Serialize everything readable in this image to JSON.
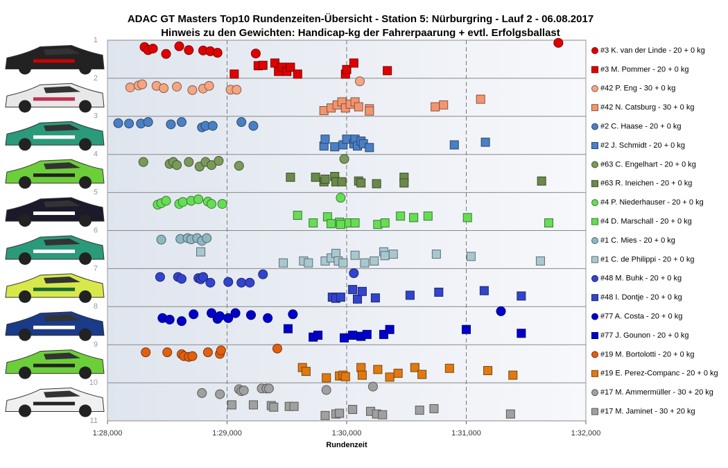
{
  "chart_data": {
    "type": "scatter",
    "title": "ADAC GT Masters Top10 Rundenzeiten-Übersicht - Station 5: Nürburgring - Lauf 2 - 06.08.2017",
    "subtitle": "Hinweis zu den Gewichten: Handicap-kg der Fahrerpaarung + evtl. Erfolgsballast",
    "x_label": "Rundenzeit",
    "xlim": [
      88,
      92
    ],
    "xticks": [
      {
        "value": 88,
        "label": "1:28,000"
      },
      {
        "value": 89,
        "label": "1:29,000"
      },
      {
        "value": 90,
        "label": "1:30,000"
      },
      {
        "value": 91,
        "label": "1:31,000"
      },
      {
        "value": 92,
        "label": "1:32,000"
      }
    ],
    "ylim": [
      1,
      11
    ],
    "yticks": [
      1,
      2,
      3,
      4,
      5,
      6,
      7,
      8,
      9,
      10,
      11
    ],
    "y_reversed": true,
    "grid": true,
    "legend": "right",
    "series": [
      {
        "name": "#3 K. van der Linde - 20 + 0 kg",
        "marker": "circle",
        "color": "#e00000",
        "x": [
          88.31,
          88.34,
          88.38,
          88.49,
          88.6,
          88.68,
          88.8,
          88.86,
          88.92,
          89.24,
          91.77
        ],
        "values": [
          1.18,
          1.26,
          1.22,
          1.36,
          1.16,
          1.26,
          1.27,
          1.29,
          1.33,
          1.35,
          1.07
        ]
      },
      {
        "name": "#3 M. Pommer - 20 + 0 kg",
        "marker": "square",
        "color": "#e00000",
        "x": [
          89.06,
          89.26,
          89.3,
          89.4,
          89.43,
          89.46,
          89.5,
          89.53,
          89.59,
          89.99,
          90.0,
          90.06,
          90.34
        ],
        "values": [
          1.89,
          1.67,
          1.66,
          1.6,
          1.82,
          1.71,
          1.82,
          1.71,
          1.89,
          1.89,
          1.77,
          1.6,
          1.8
        ]
      },
      {
        "name": "#42 P. Eng - 30 + 0 kg",
        "marker": "circle",
        "color": "#f4a582",
        "x": [
          88.19,
          88.26,
          88.29,
          88.41,
          88.47,
          88.58,
          88.71,
          88.8,
          88.85,
          89.03,
          89.08,
          90.11
        ],
        "values": [
          2.24,
          2.19,
          2.16,
          2.2,
          2.26,
          2.22,
          2.31,
          2.27,
          2.2,
          2.3,
          2.3,
          2.08
        ]
      },
      {
        "name": "#42 N. Catsburg - 30 + 0 kg",
        "marker": "square",
        "color": "#f49570",
        "x": [
          89.81,
          89.87,
          89.92,
          89.96,
          89.99,
          90.03,
          90.07,
          90.1,
          90.19,
          90.19,
          90.74,
          90.81,
          91.12
        ],
        "values": [
          2.85,
          2.78,
          2.7,
          2.62,
          2.78,
          2.68,
          2.62,
          2.75,
          2.8,
          2.86,
          2.75,
          2.7,
          2.55
        ]
      },
      {
        "name": "#2 C. Haase - 20 + 0 kg",
        "marker": "circle",
        "color": "#4a7fc4",
        "x": [
          88.09,
          88.18,
          88.28,
          88.34,
          88.53,
          88.62,
          88.79,
          88.82,
          88.88,
          89.12,
          89.22
        ],
        "values": [
          3.18,
          3.19,
          3.19,
          3.15,
          3.21,
          3.15,
          3.29,
          3.25,
          3.25,
          3.15,
          3.25
        ]
      },
      {
        "name": "#2 J. Schmidt - 20 + 0 kg",
        "marker": "square",
        "color": "#4a7fc4",
        "x": [
          89.81,
          89.82,
          89.9,
          89.97,
          90.0,
          90.06,
          90.07,
          90.09,
          90.12,
          90.14,
          90.19,
          90.9,
          91.16
        ],
        "values": [
          3.78,
          3.6,
          3.8,
          3.75,
          3.6,
          3.72,
          3.6,
          3.78,
          3.65,
          3.72,
          3.82,
          3.75,
          3.68
        ]
      },
      {
        "name": "#63 C. Engelhart - 20 + 0 kg",
        "marker": "circle",
        "color": "#7a9a5a",
        "x": [
          88.3,
          88.52,
          88.55,
          88.58,
          88.68,
          88.77,
          88.82,
          88.87,
          88.93,
          89.1,
          89.98
        ],
        "values": [
          4.2,
          4.25,
          4.2,
          4.28,
          4.2,
          4.32,
          4.2,
          4.28,
          4.17,
          4.3,
          4.12
        ]
      },
      {
        "name": "#63 R. Ineichen - 20 + 0 kg",
        "marker": "square",
        "color": "#6a8a4a",
        "x": [
          89.53,
          89.74,
          89.81,
          89.82,
          89.9,
          89.91,
          89.96,
          90.1,
          90.12,
          90.25,
          90.48,
          90.48,
          91.63
        ],
        "values": [
          4.6,
          4.6,
          4.72,
          4.65,
          4.58,
          4.72,
          4.72,
          4.7,
          4.75,
          4.77,
          4.6,
          4.75,
          4.7
        ]
      },
      {
        "name": "#4 P. Niederhauser - 20 + 0 kg",
        "marker": "circle",
        "color": "#66dd55",
        "x": [
          88.42,
          88.45,
          88.49,
          88.6,
          88.63,
          88.7,
          88.76,
          88.84,
          88.87,
          88.96,
          89.95
        ],
        "values": [
          5.32,
          5.28,
          5.22,
          5.3,
          5.25,
          5.22,
          5.18,
          5.24,
          5.3,
          5.3,
          5.14
        ]
      },
      {
        "name": "#4 D. Marschall - 20 + 0 kg",
        "marker": "square",
        "color": "#66dd55",
        "x": [
          89.59,
          89.72,
          89.84,
          89.87,
          89.94,
          89.95,
          90.02,
          90.07,
          90.26,
          90.32,
          90.45,
          90.56,
          90.68,
          91.01,
          91.69
        ],
        "values": [
          5.6,
          5.8,
          5.64,
          5.82,
          5.78,
          5.84,
          5.8,
          5.8,
          5.84,
          5.8,
          5.62,
          5.66,
          5.62,
          5.66,
          5.8
        ]
      },
      {
        "name": "#1 C. Mies - 20 + 0 kg",
        "marker": "circle",
        "color": "#8fb7c0",
        "x": [
          88.45,
          88.61,
          88.67,
          88.7,
          88.75,
          88.79,
          88.83
        ],
        "values": [
          6.24,
          6.22,
          6.2,
          6.23,
          6.2,
          6.27,
          6.2
        ]
      },
      {
        "name": "#1 C. de Philippi - 20 + 0 kg",
        "marker": "square",
        "color": "#a8c8d0",
        "x": [
          88.78,
          89.47,
          89.64,
          89.68,
          89.82,
          89.87,
          89.91,
          89.93,
          89.97,
          90.07,
          90.15,
          90.23,
          90.31,
          90.32,
          90.39,
          90.75,
          91.04,
          91.62
        ],
        "values": [
          6.56,
          6.85,
          6.8,
          6.85,
          6.8,
          6.72,
          6.6,
          6.8,
          6.85,
          6.65,
          6.85,
          6.8,
          6.56,
          6.66,
          6.62,
          6.62,
          6.68,
          6.8
        ]
      },
      {
        "name": "#48 M. Buhk - 20 + 0 kg",
        "marker": "circle",
        "color": "#3344cc",
        "x": [
          88.44,
          88.59,
          88.62,
          88.76,
          88.78,
          88.8,
          88.86,
          89.01,
          89.12,
          89.19,
          89.3,
          90.06
        ],
        "values": [
          7.22,
          7.22,
          7.27,
          7.25,
          7.28,
          7.22,
          7.37,
          7.35,
          7.37,
          7.37,
          7.15,
          7.12
        ]
      },
      {
        "name": "#48 I. Dontje - 20 + 0 kg",
        "marker": "square",
        "color": "#3344cc",
        "x": [
          89.88,
          89.91,
          89.95,
          90.05,
          90.09,
          90.13,
          90.24,
          90.53,
          90.77,
          91.15,
          91.46
        ],
        "values": [
          7.75,
          7.78,
          7.75,
          7.55,
          7.8,
          7.6,
          7.77,
          7.7,
          7.62,
          7.58,
          7.72
        ]
      },
      {
        "name": "#77 A. Costa - 20 + 0 kg",
        "marker": "circle",
        "color": "#0000cc",
        "x": [
          88.46,
          88.52,
          88.62,
          88.72,
          88.87,
          88.92,
          88.94,
          89.01,
          89.07,
          89.2,
          89.34,
          89.55,
          91.29
        ],
        "values": [
          8.3,
          8.34,
          8.38,
          8.2,
          8.17,
          8.32,
          8.25,
          8.3,
          8.17,
          8.22,
          8.3,
          8.2,
          8.12
        ]
      },
      {
        "name": "#77 J. Gounon - 20 + 0 kg",
        "marker": "square",
        "color": "#0000cc",
        "x": [
          89.51,
          89.72,
          89.76,
          89.98,
          90.05,
          90.12,
          90.17,
          90.31,
          90.36,
          91.0,
          91.46
        ],
        "values": [
          8.58,
          8.8,
          8.75,
          8.82,
          8.75,
          8.78,
          8.73,
          8.73,
          8.6,
          8.6,
          8.7
        ]
      },
      {
        "name": "#19 M. Bortolotti - 20 + 0 kg",
        "marker": "circle",
        "color": "#e06010",
        "x": [
          88.32,
          88.5,
          88.62,
          88.64,
          88.68,
          88.71,
          88.84,
          88.94,
          88.95,
          89.42
        ],
        "values": [
          9.2,
          9.2,
          9.25,
          9.3,
          9.32,
          9.3,
          9.2,
          9.24,
          9.15,
          9.1
        ]
      },
      {
        "name": "#19 E. Perez-Companc - 20 + 0 kg",
        "marker": "square",
        "color": "#e07a10",
        "x": [
          89.63,
          89.66,
          89.83,
          89.94,
          89.97,
          89.99,
          90.12,
          90.13,
          90.26,
          90.36,
          90.43,
          90.57,
          90.63,
          90.86,
          91.18,
          91.39
        ],
        "values": [
          9.6,
          9.7,
          9.87,
          9.82,
          9.8,
          9.84,
          9.6,
          9.8,
          9.65,
          9.85,
          9.75,
          9.6,
          9.78,
          9.62,
          9.68,
          9.8
        ]
      },
      {
        "name": "#17 M. Ammermüller - 30 + 20 kg",
        "marker": "circle",
        "color": "#a0a0a0",
        "x": [
          88.79,
          88.94,
          89.1,
          89.12,
          89.14,
          89.29,
          89.33,
          89.35,
          89.83,
          90.22
        ],
        "values": [
          10.27,
          10.3,
          10.17,
          10.22,
          10.2,
          10.15,
          10.15,
          10.15,
          10.19,
          10.1
        ]
      },
      {
        "name": "#17 M. Jaminet - 30 + 20 kg",
        "marker": "square",
        "color": "#a0a0a0",
        "x": [
          89.04,
          89.22,
          89.37,
          89.39,
          89.52,
          89.56,
          89.82,
          89.91,
          89.94,
          90.05,
          90.2,
          90.25,
          90.3,
          90.61,
          90.73,
          91.37
        ],
        "values": [
          10.58,
          10.58,
          10.6,
          10.64,
          10.62,
          10.62,
          10.86,
          10.82,
          10.8,
          10.7,
          10.75,
          10.82,
          10.84,
          10.72,
          10.68,
          10.82
        ]
      }
    ]
  }
}
